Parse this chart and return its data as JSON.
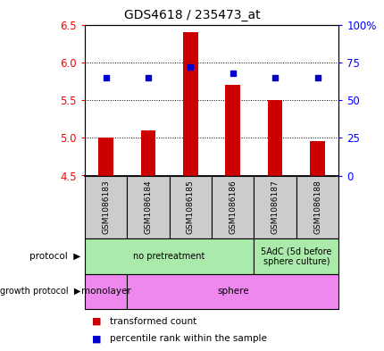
{
  "title": "GDS4618 / 235473_at",
  "samples": [
    "GSM1086183",
    "GSM1086184",
    "GSM1086185",
    "GSM1086186",
    "GSM1086187",
    "GSM1086188"
  ],
  "transformed_counts": [
    5.0,
    5.1,
    6.4,
    5.7,
    5.5,
    4.95
  ],
  "percentile_ranks": [
    65,
    65,
    72,
    68,
    65,
    65
  ],
  "ylim": [
    4.5,
    6.5
  ],
  "ylim_right": [
    0,
    100
  ],
  "yticks_left": [
    4.5,
    5.0,
    5.5,
    6.0,
    6.5
  ],
  "yticks_right": [
    0,
    25,
    50,
    75,
    100
  ],
  "ytick_labels_right": [
    "0",
    "25",
    "50",
    "75",
    "100%"
  ],
  "bar_color": "#cc0000",
  "dot_color": "#0000cc",
  "bar_bottom": 4.5,
  "protocol_data": [
    {
      "label": "no pretreatment",
      "start": 0,
      "end": 4,
      "color": "#aaeaaa"
    },
    {
      "label": "5AdC (5d before\nsphere culture)",
      "start": 4,
      "end": 6,
      "color": "#aaeaaa"
    }
  ],
  "growth_data": [
    {
      "label": "monolayer",
      "start": 0,
      "end": 1,
      "color": "#ee88ee"
    },
    {
      "label": "sphere",
      "start": 1,
      "end": 6,
      "color": "#ee88ee"
    }
  ],
  "sample_box_color": "#cccccc",
  "grid_yticks": [
    5.0,
    5.5,
    6.0
  ]
}
